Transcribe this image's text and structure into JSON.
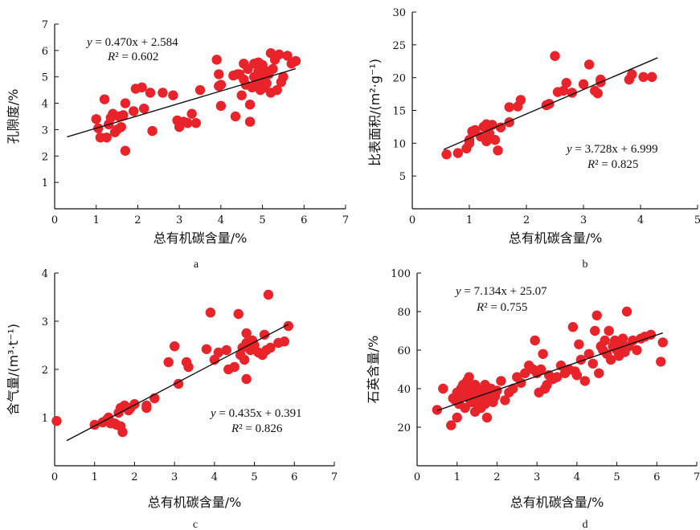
{
  "colors": {
    "point": "#e8232a",
    "line": "#111111",
    "axis": "#111111"
  },
  "chart_data": [
    {
      "type": "scatter",
      "panel": "a",
      "xlabel": "总有机碳含量/%",
      "ylabel": "孔隙度/%",
      "xlim": [
        0,
        7
      ],
      "ylim": [
        0,
        7
      ],
      "xticks": [
        0,
        1,
        2,
        3,
        4,
        5,
        6,
        7
      ],
      "yticks": [
        1,
        2,
        3,
        4,
        5,
        6,
        7
      ],
      "equation": "y = 0.470x + 2.584",
      "r2": "R² = 0.602",
      "fit": {
        "slope": 0.47,
        "intercept": 2.584,
        "x_range": [
          0.3,
          5.8
        ]
      },
      "points": [
        [
          1.0,
          3.4
        ],
        [
          1.05,
          3.05
        ],
        [
          1.1,
          2.7
        ],
        [
          1.2,
          4.15
        ],
        [
          1.25,
          2.7
        ],
        [
          1.3,
          3.2
        ],
        [
          1.35,
          3.45
        ],
        [
          1.4,
          3.6
        ],
        [
          1.45,
          2.9
        ],
        [
          1.5,
          3.0
        ],
        [
          1.55,
          3.5
        ],
        [
          1.6,
          3.1
        ],
        [
          1.65,
          3.55
        ],
        [
          1.7,
          2.2
        ],
        [
          1.7,
          4.0
        ],
        [
          1.9,
          3.7
        ],
        [
          1.95,
          4.55
        ],
        [
          2.1,
          4.6
        ],
        [
          2.15,
          3.8
        ],
        [
          2.3,
          4.4
        ],
        [
          2.35,
          2.95
        ],
        [
          2.6,
          4.4
        ],
        [
          2.85,
          4.3
        ],
        [
          2.95,
          3.35
        ],
        [
          3.0,
          3.1
        ],
        [
          3.1,
          3.3
        ],
        [
          3.2,
          3.25
        ],
        [
          3.3,
          3.6
        ],
        [
          3.4,
          3.25
        ],
        [
          3.5,
          4.5
        ],
        [
          3.9,
          5.65
        ],
        [
          3.95,
          5.1
        ],
        [
          4.0,
          4.7
        ],
        [
          4.0,
          3.9
        ],
        [
          4.3,
          5.05
        ],
        [
          4.35,
          3.5
        ],
        [
          4.4,
          5.1
        ],
        [
          4.5,
          4.3
        ],
        [
          4.55,
          5.5
        ],
        [
          4.6,
          4.7
        ],
        [
          4.65,
          5.3
        ],
        [
          4.7,
          3.3
        ],
        [
          4.7,
          3.95
        ],
        [
          4.75,
          4.6
        ],
        [
          4.8,
          5.0
        ],
        [
          4.8,
          5.5
        ],
        [
          4.85,
          4.8
        ],
        [
          4.9,
          5.2
        ],
        [
          4.95,
          4.5
        ],
        [
          5.0,
          4.9
        ],
        [
          5.0,
          5.45
        ],
        [
          5.05,
          4.6
        ],
        [
          5.1,
          4.75
        ],
        [
          5.15,
          5.1
        ],
        [
          5.2,
          4.4
        ],
        [
          5.2,
          5.9
        ],
        [
          5.25,
          5.3
        ],
        [
          5.3,
          5.65
        ],
        [
          5.35,
          4.5
        ],
        [
          5.4,
          5.85
        ],
        [
          5.45,
          4.8
        ],
        [
          5.5,
          5.0
        ],
        [
          5.6,
          5.8
        ],
        [
          5.7,
          5.5
        ],
        [
          5.8,
          5.6
        ],
        [
          4.9,
          5.55
        ],
        [
          5.05,
          5.25
        ],
        [
          4.55,
          4.9
        ],
        [
          4.45,
          5.1
        ],
        [
          3.95,
          4.65
        ]
      ]
    },
    {
      "type": "scatter",
      "panel": "b",
      "xlabel": "总有机碳含量/%",
      "ylabel": "比表面积/(m²·g⁻¹)",
      "xlim": [
        0,
        5
      ],
      "ylim": [
        0,
        30
      ],
      "xticks": [
        0,
        1,
        2,
        3,
        4,
        5
      ],
      "yticks": [
        5,
        10,
        15,
        20,
        25,
        30
      ],
      "equation": "y = 3.728x + 6.999",
      "r2": "R² = 0.825",
      "fit": {
        "slope": 3.728,
        "intercept": 6.999,
        "x_range": [
          0.55,
          4.3
        ]
      },
      "points": [
        [
          0.6,
          8.3
        ],
        [
          0.8,
          8.5
        ],
        [
          0.95,
          9.2
        ],
        [
          1.0,
          10.0
        ],
        [
          1.0,
          10.5
        ],
        [
          1.05,
          11.8
        ],
        [
          1.1,
          12.0
        ],
        [
          1.2,
          11.0
        ],
        [
          1.25,
          12.5
        ],
        [
          1.3,
          12.9
        ],
        [
          1.3,
          10.3
        ],
        [
          1.35,
          11.5
        ],
        [
          1.4,
          12.8
        ],
        [
          1.45,
          10.5
        ],
        [
          1.5,
          8.9
        ],
        [
          1.55,
          12.4
        ],
        [
          1.7,
          13.2
        ],
        [
          1.7,
          15.5
        ],
        [
          1.85,
          15.6
        ],
        [
          1.9,
          16.6
        ],
        [
          2.35,
          15.8
        ],
        [
          2.4,
          16.0
        ],
        [
          2.5,
          23.3
        ],
        [
          2.55,
          17.8
        ],
        [
          2.65,
          18.0
        ],
        [
          2.7,
          19.2
        ],
        [
          2.8,
          17.7
        ],
        [
          3.0,
          19.0
        ],
        [
          3.1,
          22.0
        ],
        [
          3.2,
          18.0
        ],
        [
          3.25,
          17.6
        ],
        [
          3.3,
          19.3
        ],
        [
          3.3,
          19.7
        ],
        [
          3.8,
          19.7
        ],
        [
          3.85,
          20.5
        ],
        [
          4.05,
          20.1
        ],
        [
          4.2,
          20.1
        ]
      ]
    },
    {
      "type": "scatter",
      "panel": "c",
      "xlabel": "总有机碳含量/%",
      "ylabel": "含气量/(m³·t⁻¹)",
      "xlim": [
        0,
        7
      ],
      "ylim": [
        0,
        4
      ],
      "xticks": [
        0,
        1,
        2,
        3,
        4,
        5,
        6,
        7
      ],
      "yticks": [
        1,
        2,
        3,
        4
      ],
      "equation": "y = 0.435x + 0.391",
      "r2": "R² = 0.826",
      "fit": {
        "slope": 0.435,
        "intercept": 0.391,
        "x_range": [
          0.3,
          5.85
        ]
      },
      "points": [
        [
          0.05,
          0.93
        ],
        [
          1.0,
          0.85
        ],
        [
          1.2,
          0.9
        ],
        [
          1.3,
          0.95
        ],
        [
          1.35,
          1.0
        ],
        [
          1.4,
          0.88
        ],
        [
          1.5,
          0.88
        ],
        [
          1.55,
          0.85
        ],
        [
          1.6,
          1.1
        ],
        [
          1.65,
          1.2
        ],
        [
          1.65,
          0.82
        ],
        [
          1.7,
          0.7
        ],
        [
          1.75,
          1.25
        ],
        [
          1.8,
          1.2
        ],
        [
          1.85,
          1.15
        ],
        [
          1.9,
          1.2
        ],
        [
          2.0,
          1.28
        ],
        [
          2.3,
          1.2
        ],
        [
          2.3,
          1.25
        ],
        [
          2.5,
          1.4
        ],
        [
          2.85,
          2.15
        ],
        [
          3.0,
          2.48
        ],
        [
          3.1,
          1.7
        ],
        [
          3.3,
          2.15
        ],
        [
          3.35,
          2.05
        ],
        [
          3.8,
          2.42
        ],
        [
          3.9,
          3.18
        ],
        [
          4.0,
          2.2
        ],
        [
          4.1,
          2.35
        ],
        [
          4.3,
          2.4
        ],
        [
          4.35,
          2.0
        ],
        [
          4.5,
          2.05
        ],
        [
          4.6,
          3.15
        ],
        [
          4.65,
          2.3
        ],
        [
          4.7,
          2.45
        ],
        [
          4.75,
          2.2
        ],
        [
          4.8,
          2.55
        ],
        [
          4.8,
          1.8
        ],
        [
          4.8,
          2.75
        ],
        [
          4.9,
          2.4
        ],
        [
          4.95,
          2.6
        ],
        [
          5.0,
          2.5
        ],
        [
          5.1,
          2.35
        ],
        [
          5.2,
          2.3
        ],
        [
          5.25,
          2.72
        ],
        [
          5.3,
          2.4
        ],
        [
          5.35,
          3.55
        ],
        [
          5.4,
          2.45
        ],
        [
          5.6,
          2.55
        ],
        [
          5.75,
          2.58
        ],
        [
          5.85,
          2.9
        ]
      ]
    },
    {
      "type": "scatter",
      "panel": "d",
      "xlabel": "总有机碳含量/%",
      "ylabel": "石英含量/%",
      "xlim": [
        0,
        7
      ],
      "ylim": [
        0,
        100
      ],
      "xticks": [
        0,
        1,
        2,
        3,
        4,
        5,
        6,
        7
      ],
      "yticks": [
        20,
        40,
        60,
        80,
        100
      ],
      "equation": "y = 7.134x + 25.07",
      "r2": "R² = 0.755",
      "fit": {
        "slope": 7.134,
        "intercept": 25.07,
        "x_range": [
          0.5,
          6.15
        ]
      },
      "points": [
        [
          0.5,
          29
        ],
        [
          0.65,
          40
        ],
        [
          0.85,
          21
        ],
        [
          0.9,
          35
        ],
        [
          0.95,
          34
        ],
        [
          1.0,
          38
        ],
        [
          1.0,
          25
        ],
        [
          1.05,
          32
        ],
        [
          1.1,
          36
        ],
        [
          1.1,
          40
        ],
        [
          1.15,
          42
        ],
        [
          1.2,
          30
        ],
        [
          1.2,
          38
        ],
        [
          1.25,
          44
        ],
        [
          1.3,
          35
        ],
        [
          1.3,
          46
        ],
        [
          1.35,
          33
        ],
        [
          1.35,
          40
        ],
        [
          1.4,
          37
        ],
        [
          1.45,
          28
        ],
        [
          1.45,
          42
        ],
        [
          1.5,
          32
        ],
        [
          1.5,
          36
        ],
        [
          1.55,
          39
        ],
        [
          1.6,
          30
        ],
        [
          1.6,
          34
        ],
        [
          1.65,
          38
        ],
        [
          1.7,
          42
        ],
        [
          1.7,
          32
        ],
        [
          1.75,
          25
        ],
        [
          1.75,
          35
        ],
        [
          1.8,
          37
        ],
        [
          1.85,
          40
        ],
        [
          1.9,
          33
        ],
        [
          1.95,
          36
        ],
        [
          2.0,
          39
        ],
        [
          2.1,
          44
        ],
        [
          2.2,
          34
        ],
        [
          2.3,
          38
        ],
        [
          2.4,
          40
        ],
        [
          2.5,
          46
        ],
        [
          2.6,
          43
        ],
        [
          2.7,
          48
        ],
        [
          2.8,
          52
        ],
        [
          2.9,
          50
        ],
        [
          2.95,
          65
        ],
        [
          3.0,
          48
        ],
        [
          3.05,
          38
        ],
        [
          3.1,
          50
        ],
        [
          3.15,
          58
        ],
        [
          3.2,
          40
        ],
        [
          3.25,
          42
        ],
        [
          3.3,
          47
        ],
        [
          3.4,
          45
        ],
        [
          3.5,
          46
        ],
        [
          3.6,
          52
        ],
        [
          3.7,
          48
        ],
        [
          3.8,
          50
        ],
        [
          3.9,
          72
        ],
        [
          3.95,
          49
        ],
        [
          4.0,
          47
        ],
        [
          4.05,
          63
        ],
        [
          4.1,
          55
        ],
        [
          4.2,
          44
        ],
        [
          4.3,
          58
        ],
        [
          4.4,
          53
        ],
        [
          4.45,
          70
        ],
        [
          4.5,
          78
        ],
        [
          4.55,
          48
        ],
        [
          4.6,
          62
        ],
        [
          4.65,
          60
        ],
        [
          4.7,
          65
        ],
        [
          4.75,
          58
        ],
        [
          4.8,
          70
        ],
        [
          4.85,
          55
        ],
        [
          4.9,
          62
        ],
        [
          4.95,
          65
        ],
        [
          5.0,
          60
        ],
        [
          5.05,
          57
        ],
        [
          5.1,
          63
        ],
        [
          5.15,
          66
        ],
        [
          5.2,
          59
        ],
        [
          5.25,
          80
        ],
        [
          5.3,
          62
        ],
        [
          5.4,
          65
        ],
        [
          5.5,
          60
        ],
        [
          5.6,
          66
        ],
        [
          5.7,
          67
        ],
        [
          5.85,
          68
        ],
        [
          6.1,
          54
        ],
        [
          6.15,
          64
        ]
      ]
    }
  ]
}
